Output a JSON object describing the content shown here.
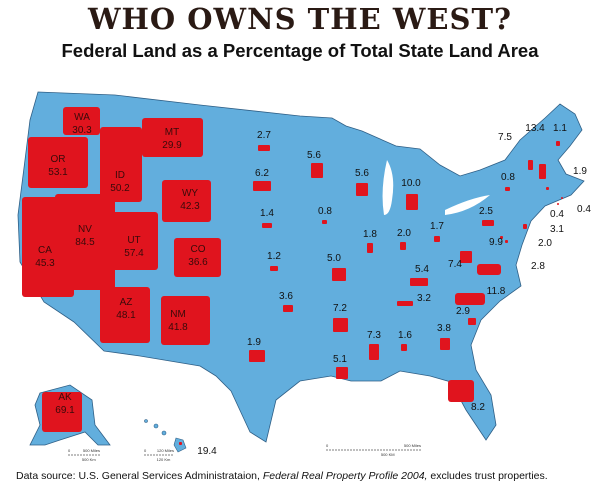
{
  "title": "WHO OWNS THE WEST?",
  "subtitle": "Federal Land as a Percentage of Total State Land Area",
  "colors": {
    "land": "#62aedd",
    "federal": "#e0141e",
    "border": "#2f5f86"
  },
  "states": [
    {
      "abbr": "WA",
      "value": "30.3"
    },
    {
      "abbr": "OR",
      "value": "53.1"
    },
    {
      "abbr": "ID",
      "value": "50.2"
    },
    {
      "abbr": "MT",
      "value": "29.9"
    },
    {
      "abbr": "WY",
      "value": "42.3"
    },
    {
      "abbr": "NV",
      "value": "84.5"
    },
    {
      "abbr": "CA",
      "value": "45.3"
    },
    {
      "abbr": "UT",
      "value": "57.4"
    },
    {
      "abbr": "CO",
      "value": "36.6"
    },
    {
      "abbr": "AZ",
      "value": "48.1"
    },
    {
      "abbr": "NM",
      "value": "41.8"
    },
    {
      "abbr": "AK",
      "value": "69.1"
    },
    {
      "abbr": "",
      "key": "ND",
      "value": "2.7"
    },
    {
      "abbr": "",
      "key": "SD",
      "value": "6.2"
    },
    {
      "abbr": "",
      "key": "NE",
      "value": "1.4"
    },
    {
      "abbr": "",
      "key": "KS",
      "value": "1.2"
    },
    {
      "abbr": "",
      "key": "OK",
      "value": "3.6"
    },
    {
      "abbr": "",
      "key": "TX",
      "value": "1.9"
    },
    {
      "abbr": "",
      "key": "MN",
      "value": "5.6"
    },
    {
      "abbr": "",
      "key": "WI",
      "value": "5.6"
    },
    {
      "abbr": "",
      "key": "MI",
      "value": "10.0"
    },
    {
      "abbr": "",
      "key": "IA",
      "value": "0.8"
    },
    {
      "abbr": "",
      "key": "IL",
      "value": "1.8"
    },
    {
      "abbr": "",
      "key": "IN",
      "value": "2.0"
    },
    {
      "abbr": "",
      "key": "OH",
      "value": "1.7"
    },
    {
      "abbr": "",
      "key": "PA",
      "value": "2.5"
    },
    {
      "abbr": "",
      "key": "NY",
      "value": "0.8"
    },
    {
      "abbr": "",
      "key": "VT",
      "value": "7.5"
    },
    {
      "abbr": "",
      "key": "NH",
      "value": "13.4"
    },
    {
      "abbr": "",
      "key": "ME",
      "value": "1.1"
    },
    {
      "abbr": "",
      "key": "MA",
      "value": "1.9"
    },
    {
      "abbr": "",
      "key": "RI",
      "value": "0.4"
    },
    {
      "abbr": "",
      "key": "CT",
      "value": "0.4"
    },
    {
      "abbr": "",
      "key": "NJ",
      "value": "3.1"
    },
    {
      "abbr": "",
      "key": "DE",
      "value": "2.0"
    },
    {
      "abbr": "",
      "key": "MD",
      "value": "2.8"
    },
    {
      "abbr": "",
      "key": "VA",
      "value": "9.9"
    },
    {
      "abbr": "",
      "key": "WV",
      "value": "7.4"
    },
    {
      "abbr": "",
      "key": "KY",
      "value": "5.4"
    },
    {
      "abbr": "",
      "key": "TN",
      "value": "3.2"
    },
    {
      "abbr": "",
      "key": "NC",
      "value": "11.8"
    },
    {
      "abbr": "",
      "key": "SC",
      "value": "2.9"
    },
    {
      "abbr": "",
      "key": "GA",
      "value": "3.8"
    },
    {
      "abbr": "",
      "key": "AL",
      "value": "1.6"
    },
    {
      "abbr": "",
      "key": "MS",
      "value": "7.3"
    },
    {
      "abbr": "",
      "key": "AR",
      "value": "7.2"
    },
    {
      "abbr": "",
      "key": "MO",
      "value": "5.0"
    },
    {
      "abbr": "",
      "key": "LA",
      "value": "5.1"
    },
    {
      "abbr": "",
      "key": "FL",
      "value": "8.2"
    },
    {
      "abbr": "",
      "key": "HI",
      "value": "19.4"
    }
  ],
  "scales": {
    "main": {
      "miles": "500 Miles",
      "km": "500 KM",
      "zero": "0"
    },
    "alaska": {
      "miles": "500 Miles",
      "km": "500 Km",
      "zero": "0"
    },
    "hawaii": {
      "miles": "120 Miles",
      "km": "120 Km",
      "zero": "0"
    }
  },
  "source": {
    "prefix": "Data source: U.S. General Services Administrataion, ",
    "italic": "Federal Real Property Profile 2004,",
    "suffix": " excludes trust properties."
  }
}
